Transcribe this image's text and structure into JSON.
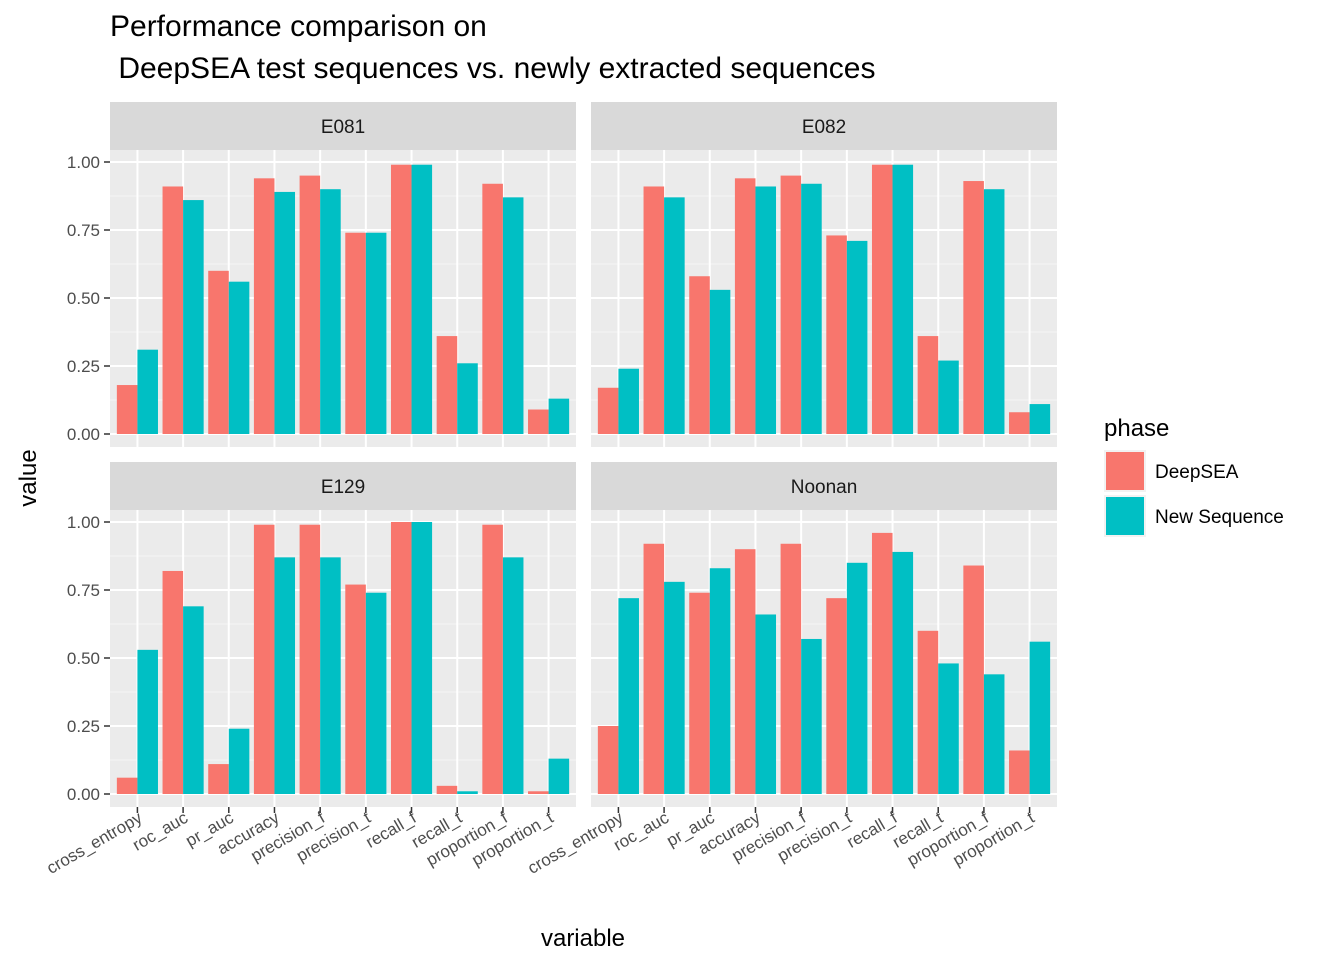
{
  "chart_data": {
    "type": "bar",
    "title": "Performance comparison on\n DeepSEA test sequences vs. newly extracted sequences",
    "xlabel": "variable",
    "ylabel": "value",
    "ylim": [
      0,
      1.2
    ],
    "yticks": [
      0.0,
      0.25,
      0.5,
      0.75,
      1.0
    ],
    "ytick_labels": [
      "0.00",
      "0.25",
      "0.50",
      "0.75",
      "1.00"
    ],
    "grid": true,
    "legend": {
      "title": "phase",
      "position": "right"
    },
    "categories": [
      "cross_entropy",
      "roc_auc",
      "pr_auc",
      "accuracy",
      "precision_f",
      "precision_t",
      "recall_f",
      "recall_t",
      "proportion_f",
      "proportion_t"
    ],
    "series_names": [
      "DeepSEA",
      "New Sequence"
    ],
    "colors": [
      "#F8766D",
      "#00BFC4"
    ],
    "facets": [
      {
        "name": "E081",
        "series": [
          {
            "name": "DeepSEA",
            "values": [
              0.18,
              0.91,
              0.6,
              0.94,
              0.95,
              0.74,
              0.99,
              0.36,
              0.92,
              0.09
            ]
          },
          {
            "name": "New Sequence",
            "values": [
              0.31,
              0.86,
              0.56,
              0.89,
              0.9,
              0.74,
              0.99,
              0.26,
              0.87,
              0.13
            ]
          }
        ]
      },
      {
        "name": "E082",
        "series": [
          {
            "name": "DeepSEA",
            "values": [
              0.17,
              0.91,
              0.58,
              0.94,
              0.95,
              0.73,
              0.99,
              0.36,
              0.93,
              0.08
            ]
          },
          {
            "name": "New Sequence",
            "values": [
              0.24,
              0.87,
              0.53,
              0.91,
              0.92,
              0.71,
              0.99,
              0.27,
              0.9,
              0.11
            ]
          }
        ]
      },
      {
        "name": "E129",
        "series": [
          {
            "name": "DeepSEA",
            "values": [
              0.06,
              0.82,
              0.11,
              0.99,
              0.99,
              0.77,
              1.0,
              0.03,
              0.99,
              0.01
            ]
          },
          {
            "name": "New Sequence",
            "values": [
              0.53,
              0.69,
              0.24,
              0.87,
              0.87,
              0.74,
              1.0,
              0.01,
              0.87,
              0.13
            ]
          }
        ]
      },
      {
        "name": "Noonan",
        "series": [
          {
            "name": "DeepSEA",
            "values": [
              0.25,
              0.92,
              0.74,
              0.9,
              0.92,
              0.72,
              0.96,
              0.6,
              0.84,
              0.16
            ]
          },
          {
            "name": "New Sequence",
            "values": [
              0.72,
              0.78,
              0.83,
              0.66,
              0.57,
              0.85,
              0.89,
              0.48,
              0.44,
              0.56
            ]
          }
        ]
      }
    ]
  }
}
